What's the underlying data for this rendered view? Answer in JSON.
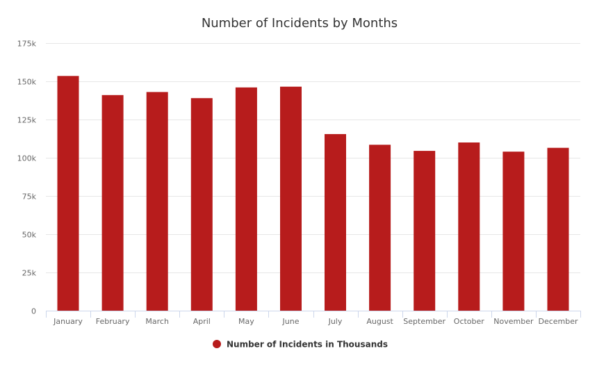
{
  "chart_data": {
    "type": "bar",
    "title": "Number of Incidents by Months",
    "xlabel": "",
    "ylabel": "",
    "categories": [
      "January",
      "February",
      "March",
      "April",
      "May",
      "June",
      "July",
      "August",
      "September",
      "October",
      "November",
      "December"
    ],
    "series": [
      {
        "name": "Number of Incidents in Thousands",
        "color": "#b71c1c",
        "values": [
          153500,
          141000,
          143000,
          139000,
          146000,
          146500,
          115500,
          108500,
          104500,
          110000,
          104000,
          106500
        ]
      }
    ],
    "ylim": [
      0,
      175000
    ],
    "yticks": [
      0,
      25000,
      50000,
      75000,
      100000,
      125000,
      150000,
      175000
    ],
    "ytick_labels": [
      "0",
      "25k",
      "50k",
      "75k",
      "100k",
      "125k",
      "150k",
      "175k"
    ],
    "grid": true,
    "legend_position": "bottom-center"
  }
}
